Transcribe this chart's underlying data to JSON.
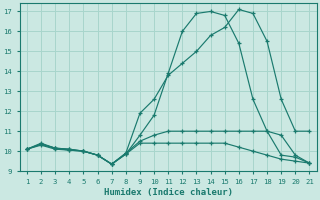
{
  "xlabel": "Humidex (Indice chaleur)",
  "xlim": [
    0.5,
    21.5
  ],
  "ylim": [
    9,
    17.4
  ],
  "xticks": [
    1,
    2,
    3,
    4,
    5,
    6,
    7,
    8,
    9,
    10,
    11,
    12,
    13,
    14,
    15,
    16,
    17,
    18,
    19,
    20,
    21
  ],
  "yticks": [
    9,
    10,
    11,
    12,
    13,
    14,
    15,
    16,
    17
  ],
  "line_color": "#1a7a6e",
  "bg_color": "#cbe8e2",
  "grid_color": "#a8d5cc",
  "series": [
    {
      "x": [
        1,
        2,
        3,
        4,
        5,
        6,
        7,
        8,
        9,
        10,
        11,
        12,
        13,
        14,
        15,
        16,
        17,
        18,
        19,
        20,
        21
      ],
      "y": [
        10.1,
        10.4,
        10.15,
        10.1,
        10.0,
        9.8,
        9.35,
        9.9,
        11.9,
        12.6,
        13.8,
        14.4,
        15.0,
        15.8,
        16.2,
        17.1,
        16.9,
        15.5,
        12.6,
        11.0,
        11.0
      ]
    },
    {
      "x": [
        1,
        2,
        3,
        4,
        5,
        6,
        7,
        8,
        9,
        10,
        11,
        12,
        13,
        14,
        15,
        16,
        17,
        18,
        19,
        20,
        21
      ],
      "y": [
        10.1,
        10.3,
        10.1,
        10.05,
        10.0,
        9.8,
        9.35,
        9.85,
        10.8,
        11.8,
        13.9,
        16.0,
        16.9,
        17.0,
        16.8,
        15.4,
        12.6,
        11.0,
        9.8,
        9.7,
        9.4
      ]
    },
    {
      "x": [
        1,
        2,
        3,
        4,
        5,
        6,
        7,
        8,
        9,
        10,
        11,
        12,
        13,
        14,
        15,
        16,
        17,
        18,
        19,
        20,
        21
      ],
      "y": [
        10.1,
        10.35,
        10.15,
        10.1,
        10.0,
        9.8,
        9.35,
        9.9,
        10.5,
        10.8,
        11.0,
        11.0,
        11.0,
        11.0,
        11.0,
        11.0,
        11.0,
        11.0,
        10.8,
        9.8,
        9.4
      ]
    },
    {
      "x": [
        1,
        2,
        3,
        4,
        5,
        6,
        7,
        8,
        9,
        10,
        11,
        12,
        13,
        14,
        15,
        16,
        17,
        18,
        19,
        20,
        21
      ],
      "y": [
        10.1,
        10.35,
        10.15,
        10.05,
        10.0,
        9.8,
        9.35,
        9.85,
        10.4,
        10.4,
        10.4,
        10.4,
        10.4,
        10.4,
        10.4,
        10.2,
        10.0,
        9.8,
        9.6,
        9.5,
        9.4
      ]
    }
  ]
}
